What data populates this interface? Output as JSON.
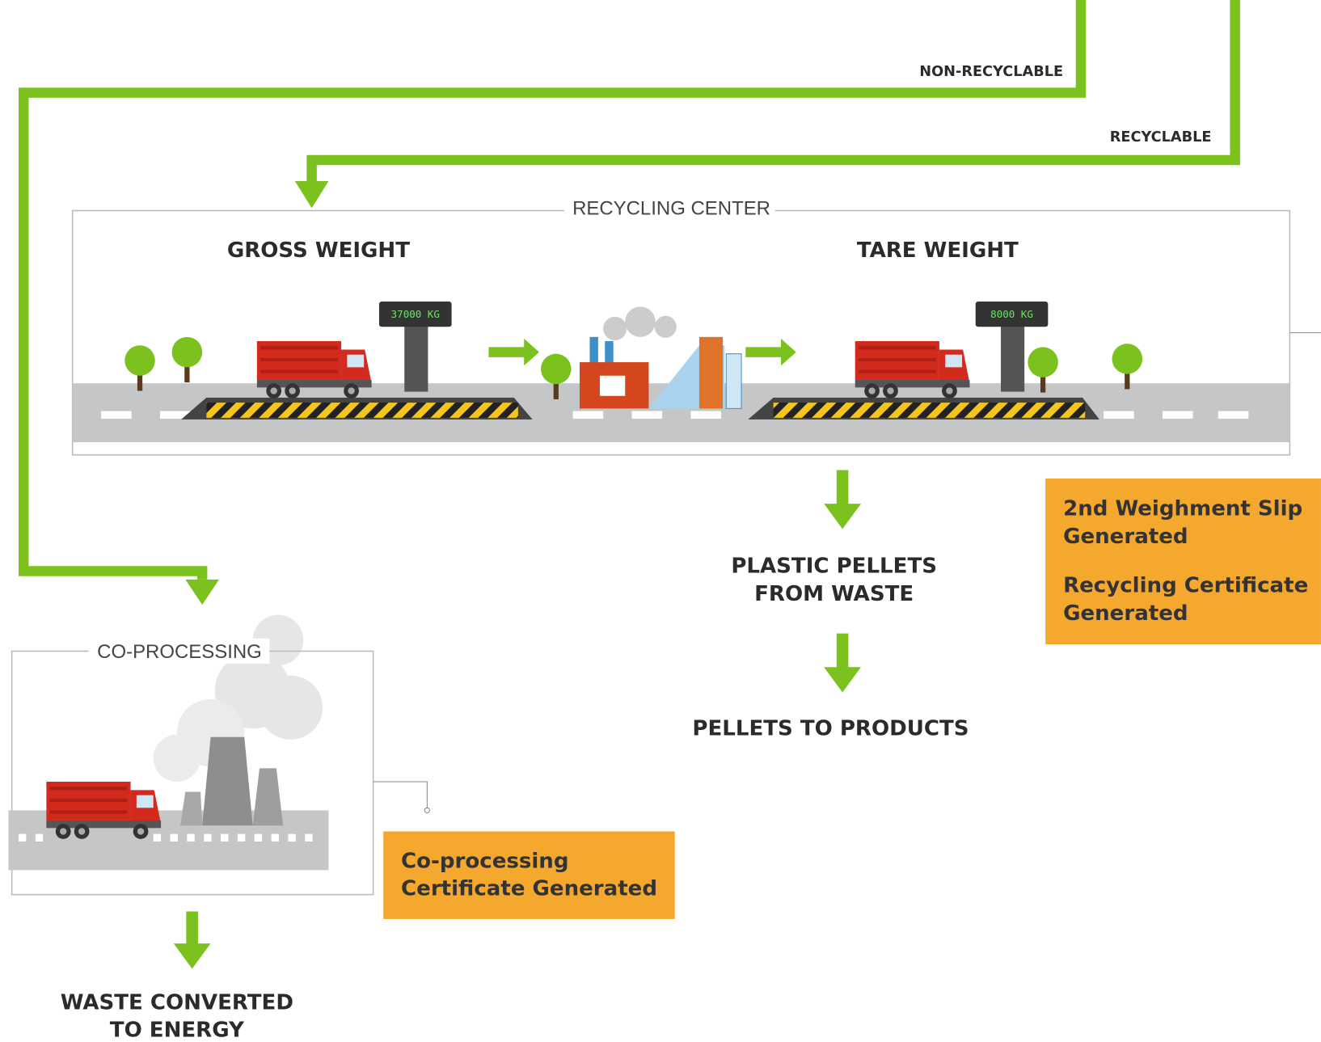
{
  "flows": {
    "non_recyclable": "NON-RECYCLABLE",
    "recyclable": "RECYCLABLE"
  },
  "recycling_center": {
    "title": "RECYCLING CENTER",
    "gross_weight": {
      "label": "GROSS WEIGHT",
      "display": "37000 KG"
    },
    "tare_weight": {
      "label": "TARE WEIGHT",
      "display": "8000 KG"
    },
    "documents": [
      {
        "lines": [
          "2nd Weighment Slip",
          "Generated"
        ]
      },
      {
        "lines": [
          "Recycling Certificate",
          "Generated"
        ]
      }
    ],
    "outputs": [
      {
        "lines": [
          "PLASTIC PELLETS",
          "FROM WASTE"
        ]
      },
      {
        "lines": [
          "PELLETS TO PRODUCTS"
        ]
      }
    ]
  },
  "co_processing": {
    "title": "CO-PROCESSING",
    "documents": [
      {
        "lines": [
          "Co-processing",
          "Certificate Generated"
        ]
      }
    ],
    "outputs": [
      {
        "lines": [
          "WASTE CONVERTED",
          "TO ENERGY"
        ]
      }
    ]
  }
}
